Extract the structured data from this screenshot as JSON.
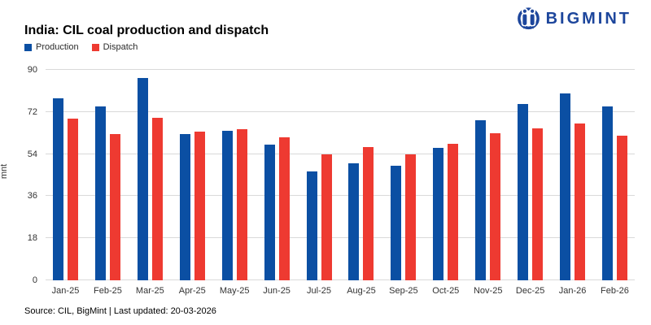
{
  "header": {
    "title": "India: CIL coal production and dispatch",
    "logo": {
      "text": "BIGMINT",
      "icon": "bigmint-penguins-icon",
      "color": "#1d469c"
    }
  },
  "chart_data": {
    "type": "bar",
    "title": "India: CIL coal production and dispatch",
    "categories": [
      "Jan-25",
      "Feb-25",
      "Mar-25",
      "Apr-25",
      "May-25",
      "Jun-25",
      "Jul-25",
      "Aug-25",
      "Sep-25",
      "Oct-25",
      "Nov-25",
      "Dec-25",
      "Jan-26",
      "Feb-26"
    ],
    "series": [
      {
        "name": "Production",
        "color": "#0b4fa3",
        "values": [
          78,
          74.5,
          86.5,
          62.5,
          64,
          58,
          46.5,
          50,
          49,
          56.5,
          68.5,
          75.5,
          80,
          74.5
        ]
      },
      {
        "name": "Dispatch",
        "color": "#ee3a31",
        "values": [
          69,
          62.5,
          69.5,
          63.5,
          64.5,
          61,
          54,
          57,
          54,
          58.5,
          63,
          65,
          67,
          62
        ]
      }
    ],
    "xlabel": "",
    "ylabel": "mnt",
    "ylim": [
      0,
      90
    ],
    "yticks": [
      0,
      18,
      36,
      54,
      72,
      90
    ],
    "grid": true,
    "gridline_color": "#d9d9d9",
    "legend_position": "top-left"
  },
  "footer": {
    "source": "Source: CIL, BigMint | Last updated: 20-03-2026"
  }
}
